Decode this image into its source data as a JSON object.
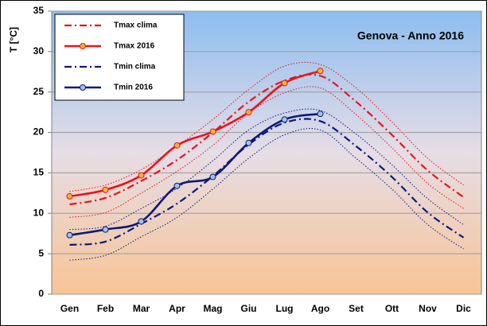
{
  "chart_data": {
    "type": "line",
    "annotation": "Genova - Anno 2016",
    "y_label": "T [°C]",
    "categories": [
      "Gen",
      "Feb",
      "Mar",
      "Apr",
      "Mag",
      "Giu",
      "Lug",
      "Ago",
      "Set",
      "Ott",
      "Nov",
      "Dic"
    ],
    "ylim": [
      0,
      35
    ],
    "yticks": [
      0,
      5,
      10,
      15,
      20,
      25,
      30,
      35
    ],
    "grid": true,
    "legend": "upper left",
    "series": [
      {
        "name": "Tmax clima",
        "color": "#e8141b",
        "style": "dashdot",
        "marker": false,
        "values": [
          11.1,
          11.9,
          14.0,
          16.6,
          20.0,
          23.8,
          26.4,
          27.0,
          23.8,
          19.7,
          15.3,
          12.0
        ]
      },
      {
        "name": "Tmax 2016",
        "color": "#e8141b",
        "style": "solid",
        "marker": true,
        "marker_color": "#f7b531",
        "values": [
          12.1,
          12.9,
          14.7,
          18.4,
          20.1,
          22.5,
          26.1,
          27.6,
          null,
          null,
          null,
          null
        ]
      },
      {
        "name": "Tmin clima",
        "color": "#0a1a7a",
        "style": "dashdot",
        "marker": false,
        "values": [
          6.1,
          6.5,
          8.7,
          11.2,
          14.6,
          18.5,
          21.2,
          21.4,
          18.3,
          14.5,
          10.1,
          7.0
        ]
      },
      {
        "name": "Tmin 2016",
        "color": "#0a1a7a",
        "style": "solid",
        "marker": true,
        "marker_color": "#9fc3e8",
        "values": [
          7.3,
          8.0,
          9.0,
          13.4,
          14.5,
          18.7,
          21.6,
          22.3,
          null,
          null,
          null,
          null
        ]
      },
      {
        "color": "#e8141b",
        "style": "dotted",
        "marker": false,
        "values": [
          12.7,
          13.5,
          15.4,
          18.3,
          21.6,
          25.3,
          28.2,
          28.4,
          25.5,
          21.3,
          16.8,
          13.5
        ]
      },
      {
        "color": "#e8141b",
        "style": "dotted",
        "marker": false,
        "values": [
          9.5,
          10.1,
          12.5,
          15.2,
          18.4,
          22.4,
          24.9,
          25.5,
          22.2,
          18.1,
          13.7,
          10.6
        ]
      },
      {
        "color": "#0a1a7a",
        "style": "dotted",
        "marker": false,
        "values": [
          8.0,
          8.4,
          10.6,
          13.1,
          16.5,
          20.3,
          22.4,
          22.7,
          19.8,
          16.0,
          11.8,
          8.6
        ]
      },
      {
        "color": "#0a1a7a",
        "style": "dotted",
        "marker": false,
        "values": [
          4.2,
          4.8,
          7.1,
          9.5,
          13.0,
          16.8,
          19.7,
          20.3,
          16.8,
          13.0,
          8.6,
          5.6
        ]
      }
    ]
  }
}
